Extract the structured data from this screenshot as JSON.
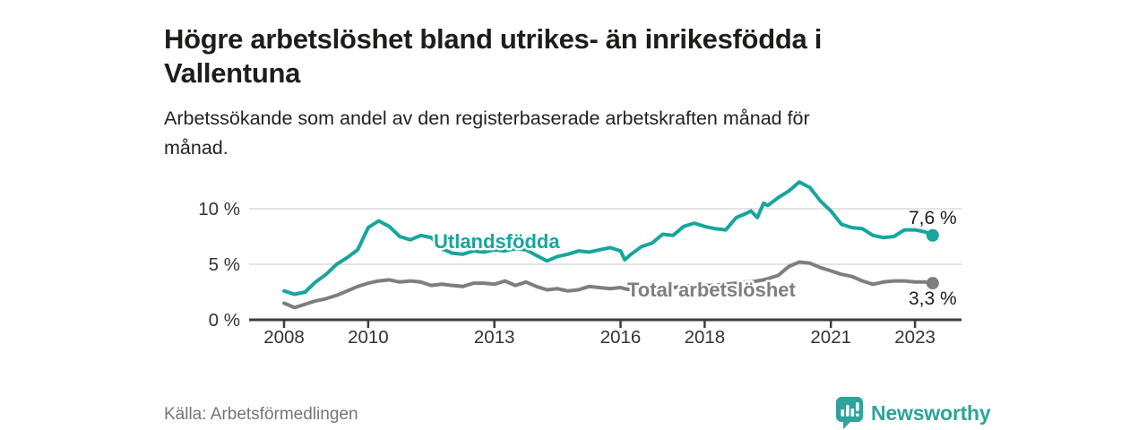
{
  "header": {
    "title_line1": "Högre arbetslöshet bland utrikes- än inrikesfödda i",
    "title_line2": "Vallentuna",
    "subtitle_line1": "Arbetssökande som andel av den registerbaserade arbetskraften månad för",
    "subtitle_line2": "månad."
  },
  "footer": {
    "source": "Källa: Arbetsförmedlingen",
    "brand": "Newsworthy",
    "brand_icon": "bar-chart-speech-bubble-icon"
  },
  "colors": {
    "series_teal": "#17a59e",
    "series_gray": "#7e7e7e",
    "axis": "#3c3c3c",
    "grid": "#dcdcdc",
    "tick_text": "#333333",
    "value_label_text": "#1d1d1b",
    "logo_teal": "#2ea39b"
  },
  "chart_data": {
    "type": "line",
    "title": "Högre arbetslöshet bland utrikes- än inrikesfödda i Vallentuna",
    "subtitle": "Arbetssökande som andel av den registerbaserade arbetskraften månad för månad.",
    "xlabel": "",
    "ylabel": "",
    "grid": "horizontal",
    "legend_position": "inline-labels",
    "xlim": [
      2007.2,
      2024.2
    ],
    "ylim": [
      0,
      13
    ],
    "x_ticks": [
      {
        "value": 2008,
        "label": "2008"
      },
      {
        "value": 2010,
        "label": "2010"
      },
      {
        "value": 2013,
        "label": "2013"
      },
      {
        "value": 2016,
        "label": "2016"
      },
      {
        "value": 2018,
        "label": "2018"
      },
      {
        "value": 2021,
        "label": "2021"
      },
      {
        "value": 2023,
        "label": "2023"
      }
    ],
    "y_ticks": [
      {
        "value": 0,
        "label": "0 %"
      },
      {
        "value": 5,
        "label": "5 %"
      },
      {
        "value": 10,
        "label": "10 %"
      }
    ],
    "x": [
      2008.0,
      2008.25,
      2008.5,
      2008.75,
      2009.0,
      2009.25,
      2009.5,
      2009.75,
      2010.0,
      2010.25,
      2010.5,
      2010.75,
      2011.0,
      2011.25,
      2011.5,
      2011.75,
      2012.0,
      2012.25,
      2012.5,
      2012.75,
      2013.0,
      2013.25,
      2013.5,
      2013.75,
      2014.0,
      2014.25,
      2014.5,
      2014.75,
      2015.0,
      2015.25,
      2015.5,
      2015.75,
      2016.0,
      2016.1,
      2016.25,
      2016.5,
      2016.75,
      2017.0,
      2017.25,
      2017.5,
      2017.75,
      2018.0,
      2018.25,
      2018.5,
      2018.75,
      2019.0,
      2019.1,
      2019.25,
      2019.4,
      2019.5,
      2019.75,
      2020.0,
      2020.25,
      2020.5,
      2020.75,
      2021.0,
      2021.25,
      2021.5,
      2021.75,
      2022.0,
      2022.25,
      2022.5,
      2022.75,
      2023.0,
      2023.25,
      2023.42
    ],
    "series": [
      {
        "name": "Utlandsfödda",
        "color": "#17a59e",
        "end_value": 7.6,
        "end_label": "7,6 %",
        "values": [
          2.6,
          2.3,
          2.5,
          3.4,
          4.1,
          5.0,
          5.6,
          6.3,
          8.3,
          8.9,
          8.4,
          7.5,
          7.2,
          7.6,
          7.4,
          6.4,
          6.0,
          5.9,
          6.2,
          6.1,
          6.3,
          6.2,
          6.4,
          6.3,
          5.8,
          5.3,
          5.7,
          5.9,
          6.2,
          6.1,
          6.3,
          6.5,
          6.2,
          5.4,
          5.9,
          6.6,
          6.9,
          7.7,
          7.6,
          8.4,
          8.7,
          8.4,
          8.2,
          8.1,
          9.2,
          9.6,
          9.8,
          9.2,
          10.5,
          10.3,
          11.0,
          11.6,
          12.4,
          11.9,
          10.7,
          9.8,
          8.6,
          8.3,
          8.2,
          7.6,
          7.4,
          7.5,
          8.1,
          8.1,
          7.9,
          7.6
        ]
      },
      {
        "name": "Total arbetslöshet",
        "color": "#7e7e7e",
        "end_value": 3.3,
        "end_label": "3,3 %",
        "values": [
          1.5,
          1.1,
          1.4,
          1.7,
          1.9,
          2.2,
          2.6,
          3.0,
          3.3,
          3.5,
          3.6,
          3.4,
          3.5,
          3.4,
          3.1,
          3.2,
          3.1,
          3.0,
          3.3,
          3.3,
          3.2,
          3.5,
          3.1,
          3.4,
          3.0,
          2.7,
          2.8,
          2.6,
          2.7,
          3.0,
          2.9,
          2.8,
          2.9,
          2.8,
          2.7,
          2.8,
          2.8,
          2.9,
          2.9,
          3.0,
          3.1,
          3.1,
          3.1,
          3.2,
          3.3,
          3.4,
          3.4,
          3.5,
          3.6,
          3.7,
          4.0,
          4.8,
          5.2,
          5.1,
          4.7,
          4.4,
          4.1,
          3.9,
          3.5,
          3.2,
          3.4,
          3.5,
          3.5,
          3.4,
          3.4,
          3.3
        ]
      }
    ]
  }
}
